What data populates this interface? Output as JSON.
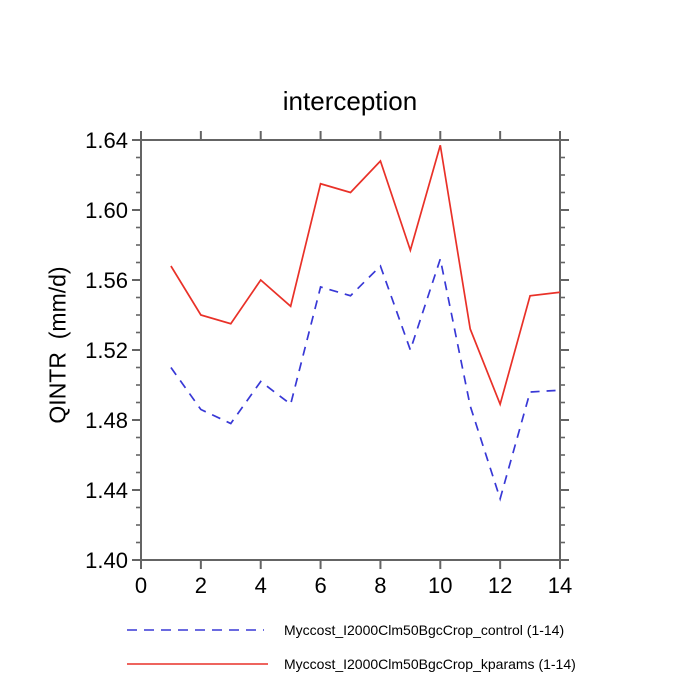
{
  "title": "interception",
  "ylabel": "QINTR  (mm/d)",
  "background": "#ffffff",
  "axis_color": "#646464",
  "text_color": "#000000",
  "chart_data": {
    "type": "line",
    "x": [
      1,
      2,
      3,
      4,
      5,
      6,
      7,
      8,
      9,
      10,
      11,
      12,
      13,
      14
    ],
    "series": [
      {
        "name": "Myccost_I2000Clm50BgcCrop_control (1-14)",
        "color": "#3838d6",
        "style": "dashed",
        "dash": "9 7",
        "values": [
          1.51,
          1.486,
          1.478,
          1.502,
          1.489,
          1.556,
          1.551,
          1.568,
          1.52,
          1.572,
          1.488,
          1.435,
          1.496,
          1.497
        ]
      },
      {
        "name": "Myccost_I2000Clm50BgcCrop_kparams (1-14)",
        "color": "#e93128",
        "style": "solid",
        "values": [
          1.568,
          1.54,
          1.535,
          1.56,
          1.545,
          1.615,
          1.61,
          1.628,
          1.577,
          1.637,
          1.532,
          1.489,
          1.551,
          1.553
        ]
      }
    ],
    "xlim": [
      0,
      14
    ],
    "ylim": [
      1.4,
      1.64
    ],
    "xticks": [
      0,
      2,
      4,
      6,
      8,
      10,
      12,
      14
    ],
    "yticks": [
      1.4,
      1.44,
      1.48,
      1.52,
      1.56,
      1.6,
      1.64
    ],
    "ytick_labels": [
      "1.40",
      "1.44",
      "1.48",
      "1.52",
      "1.56",
      "1.60",
      "1.64"
    ],
    "y_minor_step": 0.01,
    "grid": false,
    "legend_position": "bottom"
  }
}
